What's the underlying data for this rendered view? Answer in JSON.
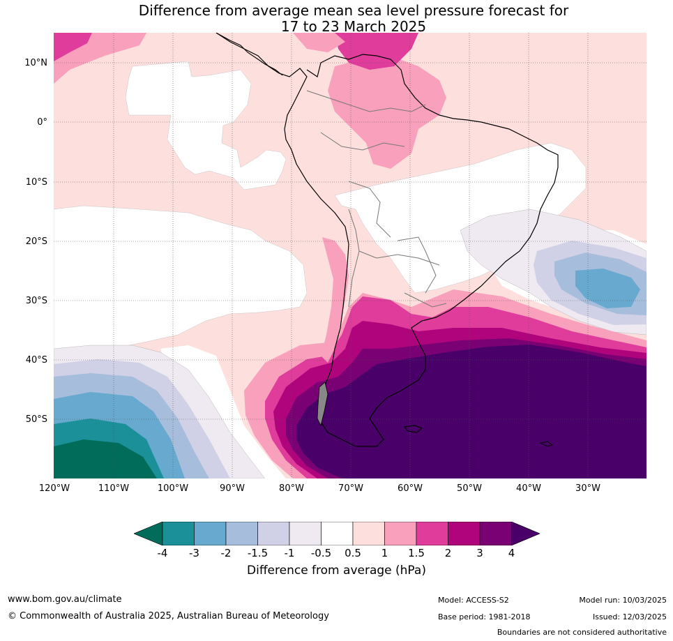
{
  "title": {
    "line1": "Difference from average mean sea level pressure forecast for",
    "line2": "17 to 23 March 2025"
  },
  "map": {
    "lat_labels": [
      "10°N",
      "0°",
      "10°S",
      "20°S",
      "30°S",
      "40°S",
      "50°S"
    ],
    "lon_labels": [
      "120°W",
      "110°W",
      "100°W",
      "90°W",
      "80°W",
      "70°W",
      "60°W",
      "50°W",
      "40°W",
      "30°W"
    ],
    "colors": {
      "ocean_neutral": "#ffffff",
      "pos_0_5_1": "#fddfdd",
      "pos_1_1_5": "#f8a0bc",
      "pos_1_5_2": "#df3c9c",
      "pos_2_3": "#b0047c",
      "pos_3_4": "#7a0174",
      "pos_gt_4": "#490068",
      "neg_0_5_1": "#efe9f1",
      "neg_1_1_5": "#d0d0e6",
      "neg_1_5_2": "#a6bddb",
      "neg_2_3": "#67a9cf",
      "neg_3_4": "#1c9099",
      "neg_lt_4": "#016c59"
    }
  },
  "colorbar": {
    "labels": [
      "-4",
      "-3",
      "-2",
      "-1.5",
      "-1",
      "-0.5",
      "0.5",
      "1",
      "1.5",
      "2",
      "3",
      "4"
    ],
    "colors": [
      "#1c9099",
      "#67a9cf",
      "#a6bddb",
      "#d0d0e6",
      "#efe9f1",
      "#ffffff",
      "#fddfdd",
      "#f8a0bc",
      "#df3c9c",
      "#b0047c",
      "#7a0174"
    ],
    "extend_low_color": "#016c59",
    "extend_high_color": "#490068",
    "title": "Difference from average (hPa)"
  },
  "footer": {
    "website": "www.bom.gov.au/climate",
    "copyright": "© Commonwealth of Australia 2025, Australian Bureau of Meteorology",
    "model": "Model: ACCESS-S2",
    "base_period": "Base period: 1981-2018",
    "model_run": "Model run: 10/03/2025",
    "issued": "Issued: 12/03/2025",
    "disclaimer": "Boundaries are not considered authoritative"
  }
}
